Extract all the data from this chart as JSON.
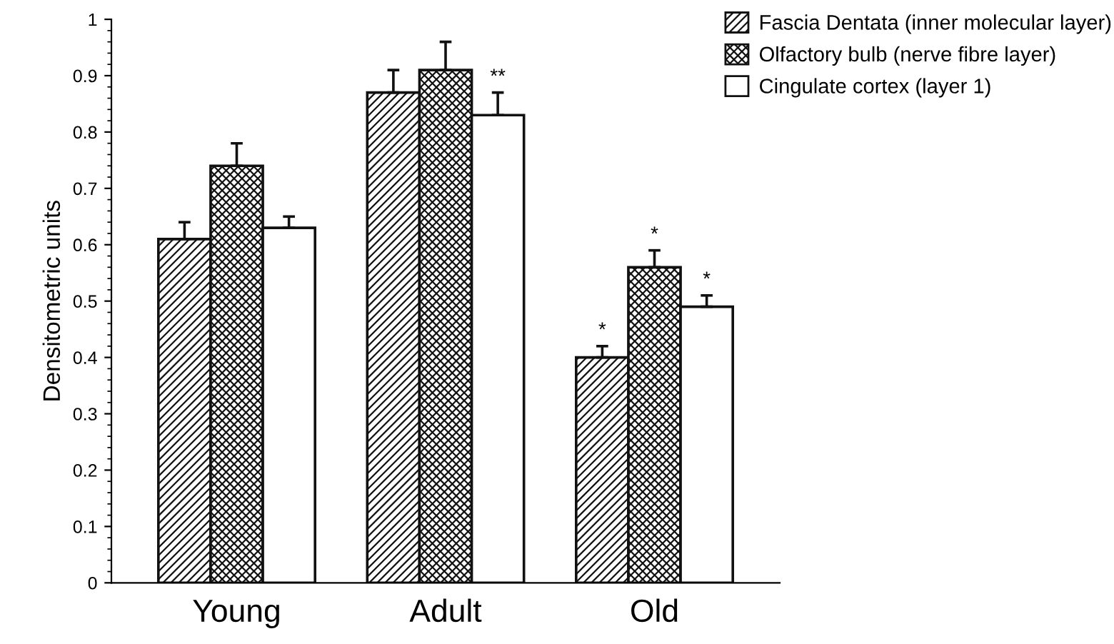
{
  "chart_data": {
    "type": "bar",
    "ylabel": "Densitometric units",
    "categories": [
      "Young",
      "Adult",
      "Old"
    ],
    "series": [
      {
        "name": "Fascia Dentata (inner molecular layer)",
        "color": "#111111",
        "values": [
          0.61,
          0.87,
          0.4
        ],
        "errors": [
          0.03,
          0.04,
          0.02
        ]
      },
      {
        "name": "Olfactory bulb (nerve fibre layer)",
        "color": "#111111",
        "values": [
          0.74,
          0.91,
          0.56
        ],
        "errors": [
          0.04,
          0.05,
          0.03
        ]
      },
      {
        "name": "Cingulate cortex (layer 1)",
        "color": "#ffffff",
        "values": [
          0.63,
          0.83,
          0.49
        ],
        "errors": [
          0.02,
          0.04,
          0.02
        ]
      }
    ],
    "annotations": [
      "**",
      "*",
      "*",
      "*"
    ],
    "ylim": [
      0,
      1
    ],
    "yticks": [
      0,
      0.1,
      0.2,
      0.3,
      0.4,
      0.5,
      0.6,
      0.7,
      0.8,
      0.9,
      1
    ],
    "grid": false,
    "legend": "top right"
  }
}
